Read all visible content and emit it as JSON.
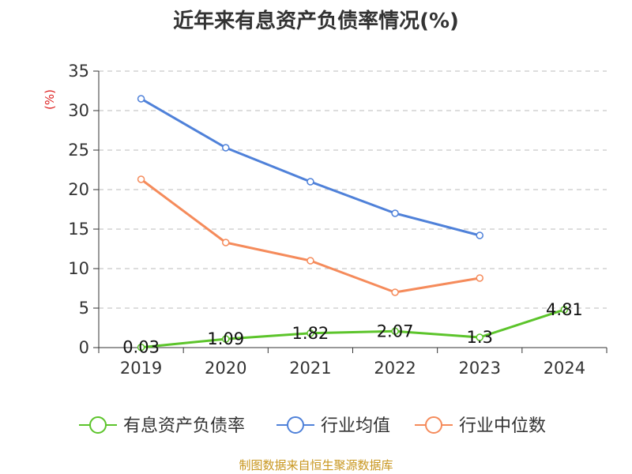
{
  "chart_data": {
    "type": "line",
    "title": "近年来有息资产负债率情况(%)",
    "ylabel": "(%)",
    "xlabel": "",
    "categories": [
      "2019",
      "2020",
      "2021",
      "2022",
      "2023",
      "2024"
    ],
    "ylim": [
      0,
      35
    ],
    "yticks": [
      0,
      5,
      10,
      15,
      20,
      25,
      30,
      35
    ],
    "grid": true,
    "legend_position": "bottom",
    "series": [
      {
        "name": "有息资产负债率",
        "color": "#5cc42b",
        "values": [
          0.03,
          1.09,
          1.82,
          2.07,
          1.3,
          4.81
        ],
        "labels": [
          "0.03",
          "1.09",
          "1.82",
          "2.07",
          "1.3",
          "4.81"
        ]
      },
      {
        "name": "行业均值",
        "color": "#4f81d9",
        "values": [
          31.5,
          25.3,
          21.0,
          17.0,
          14.2,
          null
        ]
      },
      {
        "name": "行业中位数",
        "color": "#f58b5b",
        "values": [
          21.3,
          13.3,
          11.0,
          7.0,
          8.8,
          null
        ]
      }
    ]
  },
  "footer": {
    "source": "制图数据来自恒生聚源数据库"
  }
}
